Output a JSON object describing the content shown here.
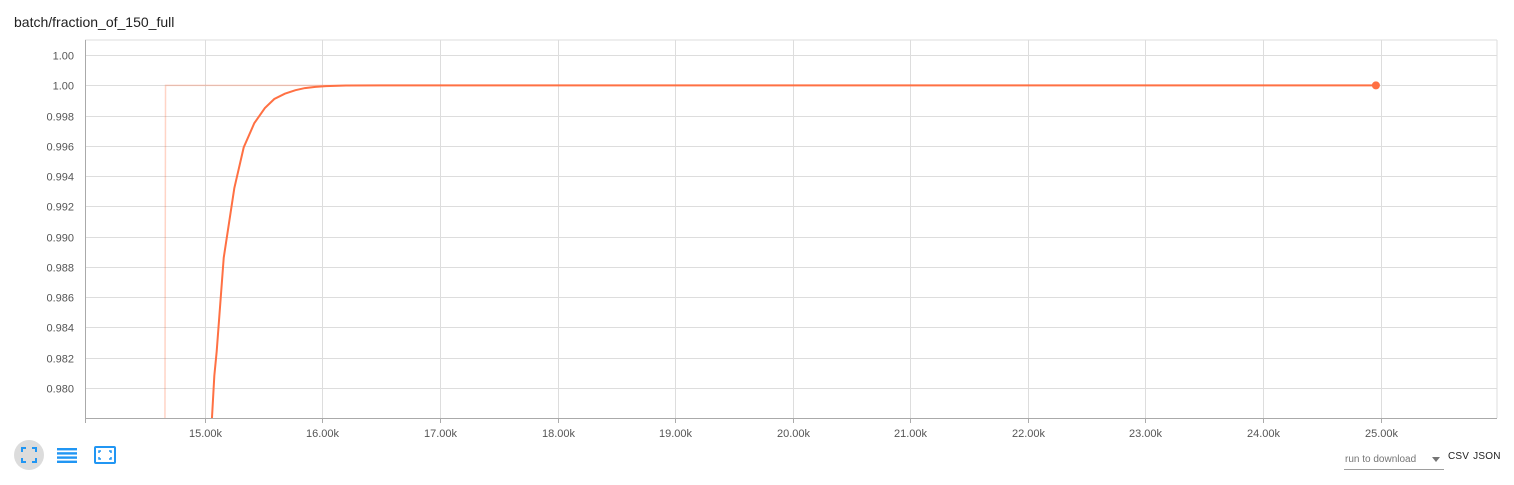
{
  "card": {
    "title": "batch/fraction_of_150_full"
  },
  "toolbar": {
    "buttons": [
      {
        "name": "fullscreen-toggle-button",
        "icon": "expand-icon"
      },
      {
        "name": "toggle-data-table-button",
        "icon": "list-icon"
      },
      {
        "name": "fit-domain-button",
        "icon": "fit-domain-icon"
      }
    ]
  },
  "download": {
    "placeholder": "run to download",
    "csv_label": "CSV",
    "json_label": "JSON"
  },
  "chart_data": {
    "type": "line",
    "title": "batch/fraction_of_150_full",
    "xlabel": "",
    "ylabel": "",
    "xlim": [
      13980,
      25990
    ],
    "ylim": [
      0.978,
      1.003
    ],
    "x_ticks": [
      15000,
      16000,
      17000,
      18000,
      19000,
      20000,
      21000,
      22000,
      23000,
      24000,
      25000
    ],
    "x_tick_labels": [
      "15.00k",
      "16.00k",
      "17.00k",
      "18.00k",
      "19.00k",
      "20.00k",
      "21.00k",
      "22.00k",
      "23.00k",
      "24.00k",
      "25.00k"
    ],
    "y_ticks": [
      0.98,
      0.982,
      0.984,
      0.986,
      0.988,
      0.99,
      0.992,
      0.994,
      0.996,
      0.998,
      1.0,
      1.002
    ],
    "y_tick_labels": [
      "0.980",
      "0.982",
      "0.984",
      "0.986",
      "0.988",
      "0.990",
      "0.992",
      "0.994",
      "0.996",
      "0.998",
      "1.00",
      "1.00"
    ],
    "grid": true,
    "color": "#ff7043",
    "series": [
      {
        "role": "raw",
        "x": [
          14660,
          14665,
          24960
        ],
        "y": [
          0.978,
          1.0,
          1.0
        ]
      },
      {
        "role": "smoothed",
        "x": [
          15060,
          15080,
          15100,
          15160,
          15250,
          15330,
          15420,
          15510,
          15590,
          15680,
          15770,
          15850,
          15940,
          16030,
          16200,
          16500,
          17000,
          18000,
          19000,
          20000,
          21000,
          22000,
          23000,
          24000,
          24960
        ],
        "y": [
          0.978,
          0.9808,
          0.9824,
          0.9886,
          0.9932,
          0.9959,
          0.9975,
          0.9985,
          0.9991,
          0.99945,
          0.99968,
          0.99982,
          0.9999,
          0.99995,
          0.99999,
          1.0,
          1.0,
          1.0,
          1.0,
          1.0,
          1.0,
          1.0,
          1.0,
          1.0,
          1.0
        ]
      }
    ]
  }
}
